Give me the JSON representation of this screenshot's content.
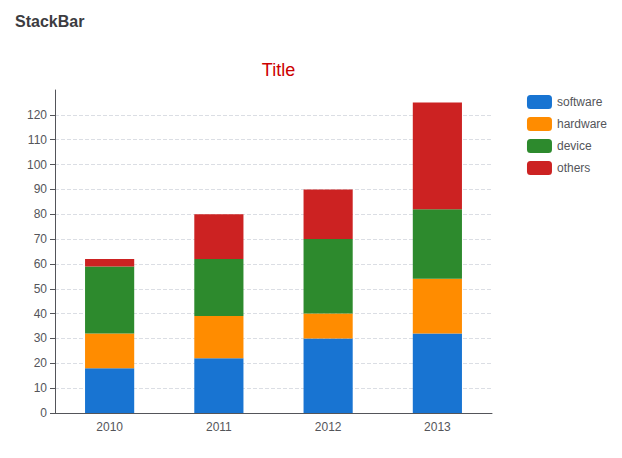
{
  "chart_data": {
    "type": "bar",
    "title": "Title",
    "subtitle": "StackBar",
    "categories": [
      "2010",
      "2011",
      "2012",
      "2013"
    ],
    "series": [
      {
        "name": "software",
        "color": "#1874d2",
        "values": [
          18,
          22,
          30,
          32
        ]
      },
      {
        "name": "hardware",
        "color": "#ff8c00",
        "values": [
          14,
          17,
          10,
          22
        ]
      },
      {
        "name": "device",
        "color": "#2d8a2d",
        "values": [
          27,
          23,
          30,
          28
        ]
      },
      {
        "name": "others",
        "color": "#cc2222",
        "values": [
          3,
          18,
          20,
          43
        ]
      }
    ],
    "stacked": true,
    "ylim": [
      0,
      130
    ],
    "yticks": [
      0,
      10,
      20,
      30,
      40,
      50,
      60,
      70,
      80,
      90,
      100,
      110,
      120
    ],
    "grid": true,
    "legend": "right"
  }
}
